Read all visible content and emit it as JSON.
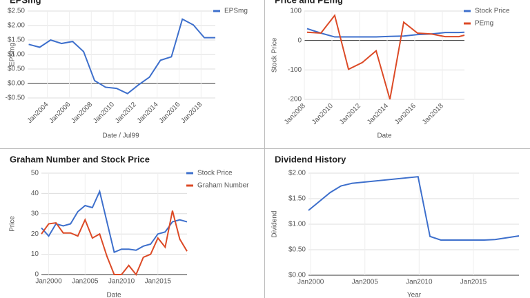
{
  "chart_data": [
    {
      "type": "line",
      "title": "EPSmg",
      "x_label": "Date / Jul99",
      "y_label": "EPSmg",
      "series": [
        {
          "name": "EPSmg",
          "color": "#3d6fcc",
          "x": [
            2002.3,
            2003.3,
            2004.3,
            2005.3,
            2006.3,
            2007.3,
            2008.3,
            2009.3,
            2010.3,
            2011.3,
            2012.3,
            2013.3,
            2014.3,
            2015.3,
            2016.3,
            2017.3,
            2018.3,
            2019.3
          ],
          "values": [
            1.35,
            1.25,
            1.5,
            1.38,
            1.45,
            1.1,
            0.1,
            -0.13,
            -0.17,
            -0.35,
            -0.05,
            0.22,
            0.8,
            0.92,
            2.22,
            2.02,
            1.58,
            1.58
          ]
        }
      ],
      "xlim": [
        2002.2,
        2019.3
      ],
      "xticks": [
        {
          "value": 2004,
          "label": "Jan2004"
        },
        {
          "value": 2006,
          "label": "Jan2006"
        },
        {
          "value": 2008,
          "label": "Jan2008"
        },
        {
          "value": 2010,
          "label": "Jan2010"
        },
        {
          "value": 2012,
          "label": "Jan2012"
        },
        {
          "value": 2014,
          "label": "Jan2014"
        },
        {
          "value": 2016,
          "label": "Jan2016"
        },
        {
          "value": 2018,
          "label": "Jan2018"
        }
      ],
      "ylim": [
        -0.5,
        2.5
      ],
      "yticks": [
        {
          "value": 2.5,
          "label": "$2.50"
        },
        {
          "value": 2,
          "label": "$2.00"
        },
        {
          "value": 1.5,
          "label": "$1.50"
        },
        {
          "value": 1,
          "label": "$1.00"
        },
        {
          "value": 0.5,
          "label": "$0.50"
        },
        {
          "value": 0,
          "label": "$0.00"
        },
        {
          "value": -0.5,
          "label": "-$0.50"
        }
      ],
      "grid": true,
      "legend": "right"
    },
    {
      "type": "line",
      "title": "Price and PEmg",
      "x_label": "Date",
      "y_label": "Stock Price",
      "series": [
        {
          "name": "Stock Price",
          "color": "#3d6fcc",
          "x": [
            2008.2,
            2009.2,
            2010.2,
            2011.2,
            2012.2,
            2013.2,
            2014.2,
            2015.2,
            2016.2,
            2017.2,
            2018.2,
            2019.2,
            2019.6
          ],
          "values": [
            40,
            25,
            12,
            12,
            12,
            12,
            14,
            15,
            20,
            22,
            27,
            27,
            28
          ]
        },
        {
          "name": "PEmg",
          "color": "#dc4a26",
          "x": [
            2008.2,
            2009.2,
            2010.2,
            2011.2,
            2012.2,
            2013.2,
            2014.2,
            2015.2,
            2016.2,
            2017.2,
            2018.2,
            2019.2,
            2019.6
          ],
          "values": [
            28,
            25,
            85,
            -98,
            -75,
            -35,
            -200,
            62,
            25,
            22,
            13,
            13,
            18
          ]
        }
      ],
      "xlim": [
        2008,
        2019.6
      ],
      "xticks": [
        {
          "value": 2008,
          "label": "Jan2008"
        },
        {
          "value": 2010,
          "label": "Jan2010"
        },
        {
          "value": 2012,
          "label": "Jan2012"
        },
        {
          "value": 2014,
          "label": "Jan2014"
        },
        {
          "value": 2016,
          "label": "Jan2016"
        },
        {
          "value": 2018,
          "label": "Jan2018"
        }
      ],
      "ylim": [
        -200,
        100
      ],
      "yticks": [
        100,
        0,
        -100,
        -200
      ],
      "grid": true,
      "legend": "right"
    },
    {
      "type": "line",
      "title": "Graham Number and Stock Price",
      "x_label": "Date",
      "y_label": "Price",
      "series": [
        {
          "name": "Stock Price",
          "color": "#3d6fcc",
          "x": [
            1999,
            2000,
            2001,
            2002,
            2003,
            2004,
            2005,
            2006,
            2007,
            2008,
            2009,
            2010,
            2011,
            2012,
            2013,
            2014,
            2015,
            2016,
            2017,
            2018,
            2019
          ],
          "values": [
            23,
            19,
            25,
            24,
            25,
            31,
            34,
            33,
            41,
            26,
            11,
            12.5,
            12.5,
            12,
            14,
            15,
            20,
            21,
            26,
            27,
            26
          ]
        },
        {
          "name": "Graham Number",
          "color": "#dc4a26",
          "x": [
            1999,
            2000,
            2001,
            2002,
            2003,
            2004,
            2005,
            2006,
            2007,
            2008,
            2009,
            2010,
            2011,
            2012,
            2013,
            2014,
            2015,
            2016,
            2017,
            2018,
            2019
          ],
          "values": [
            20,
            25,
            25.5,
            20.5,
            20.5,
            19,
            27,
            18,
            20,
            9,
            0,
            0,
            4.5,
            0,
            8.5,
            10,
            18,
            13.5,
            31.5,
            17.5,
            11.5
          ]
        }
      ],
      "xlim": [
        1999,
        2019
      ],
      "xticks": [
        {
          "value": 2000,
          "label": "Jan2000"
        },
        {
          "value": 2005,
          "label": "Jan2005"
        },
        {
          "value": 2010,
          "label": "Jan2010"
        },
        {
          "value": 2015,
          "label": "Jan2015"
        }
      ],
      "ylim": [
        0,
        50
      ],
      "yticks": [
        0,
        10,
        20,
        30,
        40,
        50
      ],
      "grid": true,
      "legend": "right"
    },
    {
      "type": "line",
      "title": "Dividend History",
      "x_label": "Year",
      "y_label": "Dividend",
      "series": [
        {
          "name": "Dividend",
          "color": "#3d6fcc",
          "x": [
            1999.8,
            2001.8,
            2002.8,
            2003.8,
            2009.9,
            2011,
            2012,
            2015,
            2016,
            2017,
            2019.2
          ],
          "values": [
            1.27,
            1.62,
            1.75,
            1.8,
            1.93,
            0.76,
            0.69,
            0.69,
            0.69,
            0.7,
            0.77
          ]
        }
      ],
      "xlim": [
        1999.8,
        2019.2
      ],
      "xticks": [
        {
          "value": 2000,
          "label": "Jan2000"
        },
        {
          "value": 2005,
          "label": "Jan2005"
        },
        {
          "value": 2010,
          "label": "Jan2010"
        },
        {
          "value": 2015,
          "label": "Jan2015"
        }
      ],
      "ylim": [
        0,
        2
      ],
      "yticks": [
        {
          "value": 0,
          "label": "$0.00"
        },
        {
          "value": 0.5,
          "label": "$0.50"
        },
        {
          "value": 1,
          "label": "$1.00"
        },
        {
          "value": 1.5,
          "label": "$1.50"
        },
        {
          "value": 2,
          "label": "$2.00"
        }
      ],
      "grid": true
    }
  ]
}
